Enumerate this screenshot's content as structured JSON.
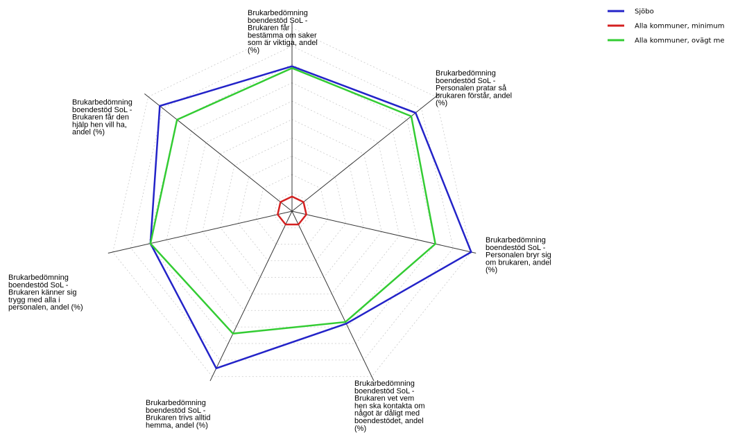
{
  "chart_data": {
    "type": "radar",
    "grid": true,
    "legend_position": "top-right",
    "axes": [
      "Brukarbedömning boendestöd SoL - Brukaren får bestämma om saker som är viktiga, andel (%)",
      "Brukarbedömning boendestöd SoL - Personalen pratar så brukaren förstår, andel (%)",
      "Brukarbedömning boendestöd SoL - Personalen bryr sig om brukaren, andel (%)",
      "Brukarbedömning boendestöd SoL - Brukaren vet vem hen ska kontakta om något är dåligt med boendestödet, andel (%)",
      "Brukarbedömning boendestöd SoL - Brukaren trivs alltid hemma, andel (%)",
      "Brukarbedömning boendestöd SoL - Brukaren känner sig trygg med alla i personalen, andel (%)",
      "Brukarbedömning boendestöd SoL - Brukaren får den hjälp hen vill ha, andel (%)"
    ],
    "axis_label_lines": [
      [
        "Brukarbedömning",
        "boendestöd SoL -",
        "Brukaren får",
        "bestämma om saker",
        "som är viktiga, andel",
        "(%)"
      ],
      [
        "Brukarbedömning",
        "boendestöd SoL -",
        "Personalen pratar så",
        "brukaren förstår, andel",
        "(%)"
      ],
      [
        "Brukarbedömning",
        "boendestöd SoL -",
        "Personalen bryr sig",
        "om brukaren, andel",
        "(%)"
      ],
      [
        "Brukarbedömning",
        "boendestöd SoL -",
        "Brukaren vet vem",
        "hen ska kontakta om",
        "något är dåligt med",
        "boendestödet, andel",
        "(%)"
      ],
      [
        "Brukarbedömning",
        "boendestöd SoL -",
        "Brukaren trivs alltid",
        "hemma, andel (%)"
      ],
      [
        "Brukarbedömning",
        "boendestöd SoL -",
        "Brukaren känner sig",
        "trygg med alla i",
        "personalen, andel (%)"
      ],
      [
        "Brukarbedömning",
        "boendestöd SoL -",
        "Brukaren får den",
        "hjälp hen vill ha,",
        "andel (%)"
      ]
    ],
    "rlim": [
      0,
      100
    ],
    "series": [
      {
        "name": "Sjöbo",
        "color": "#2323c8",
        "values": [
          79,
          86,
          100,
          68,
          95,
          79,
          92
        ]
      },
      {
        "name": "Alla kommuner, minimum",
        "color": "#d42020",
        "values": [
          8,
          8,
          8,
          8,
          8,
          8,
          8
        ]
      },
      {
        "name": "Alla kommuner, ovägt medel",
        "color": "#33cc33",
        "values": [
          78,
          83,
          80,
          67,
          74,
          79,
          80
        ]
      }
    ],
    "legend_visible_text": [
      "Sjöbo",
      "Alla kommuner, minimum",
      "Alla kommuner, ovägt me"
    ]
  }
}
